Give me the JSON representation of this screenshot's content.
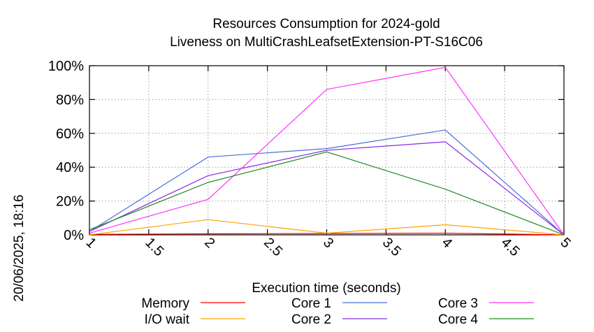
{
  "chart_data": {
    "type": "line",
    "title": "Resources Consumption for 2024-gold",
    "subtitle": "Liveness on MultiCrashLeafsetExtension-PT-S16C06",
    "xlabel": "Execution time (seconds)",
    "ylabel": "",
    "xlim": [
      1,
      5
    ],
    "ylim": [
      0,
      100
    ],
    "x_ticks": [
      "1",
      "1.5",
      "2",
      "2.5",
      "3",
      "3.5",
      "4",
      "4.5",
      "5"
    ],
    "y_ticks": [
      "0%",
      "20%",
      "40%",
      "60%",
      "80%",
      "100%"
    ],
    "grid": true,
    "legend_position": "bottom",
    "side_label": "20/06/2025, 18:16",
    "x": [
      1,
      2,
      3,
      4,
      5
    ],
    "series": [
      {
        "name": "Memory",
        "color": "#ff0000",
        "values": [
          0.3,
          0.6,
          0.8,
          1.0,
          0
        ]
      },
      {
        "name": "I/O wait",
        "color": "#ffa500",
        "values": [
          0,
          9,
          1,
          6,
          0
        ]
      },
      {
        "name": "Core 1",
        "color": "#4a6fd6",
        "values": [
          2,
          46,
          51,
          62,
          0
        ]
      },
      {
        "name": "Core 2",
        "color": "#8a2be2",
        "values": [
          2,
          35,
          50,
          55,
          0
        ]
      },
      {
        "name": "Core 3",
        "color": "#ff33ff",
        "values": [
          1,
          21,
          86,
          99,
          0
        ]
      },
      {
        "name": "Core 4",
        "color": "#228b22",
        "values": [
          3,
          31,
          49,
          27,
          0
        ]
      }
    ]
  }
}
